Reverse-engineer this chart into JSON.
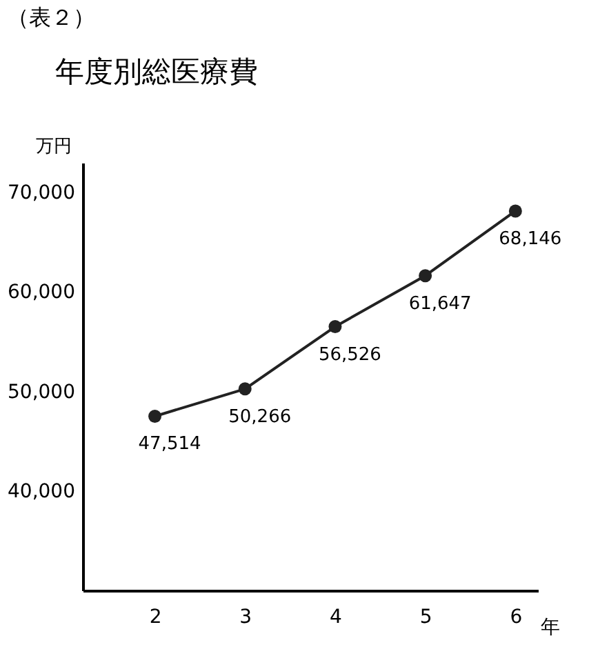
{
  "chart_data": {
    "type": "line",
    "title": "年度別総医療費",
    "annotations": [
      "（表２）"
    ],
    "xlabel": "年",
    "ylabel": "万円",
    "categories": [
      "2",
      "3",
      "4",
      "5",
      "6"
    ],
    "series": [
      {
        "color": "#222222",
        "values": [
          47514,
          50266,
          56526,
          61647,
          68146
        ],
        "value_labels": [
          "47,514",
          "50,266",
          "56,526",
          "61,647",
          "68,146"
        ]
      }
    ],
    "ylim": [
      30000,
      73000
    ],
    "yticks": [
      {
        "value": 40000,
        "label": "40,000"
      },
      {
        "value": 50000,
        "label": "50,000"
      },
      {
        "value": 60000,
        "label": "60,000"
      },
      {
        "value": 70000,
        "label": "70,000"
      }
    ],
    "grid": false,
    "marker": "circle",
    "line_style": "solid"
  }
}
